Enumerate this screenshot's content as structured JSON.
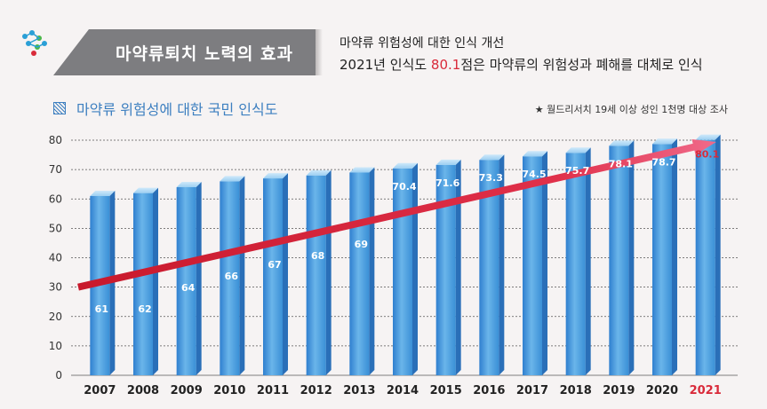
{
  "header": {
    "badge_title": "마약류퇴치 노력의 효과",
    "desc_line1": "마약류 위험성에 대한 인식 개선",
    "desc_line2_prefix": "2021년 인식도 ",
    "desc_line2_highlight": "80.1",
    "desc_line2_suffix": "점은 마약류의 위험성과 폐해를 대체로 인식"
  },
  "subtitle": "마약류 위험성에 대한 국민 인식도",
  "source": "★ 월드리서치  19세 이상 성인 1천명 대상 조사",
  "colors": {
    "accent_red": "#d92a3a",
    "bar_blue": "#3a8fd6",
    "banner_gray": "#7d7d80",
    "title_blue": "#3d7fc0"
  },
  "chart_data": {
    "type": "bar",
    "title": "마약류 위험성에 대한 국민 인식도",
    "xlabel": "",
    "ylabel": "",
    "ylim": [
      0,
      80
    ],
    "yticks": [
      0,
      10,
      20,
      30,
      40,
      50,
      60,
      70,
      80
    ],
    "grid": true,
    "categories": [
      "2007",
      "2008",
      "2009",
      "2010",
      "2011",
      "2012",
      "2013",
      "2014",
      "2015",
      "2016",
      "2017",
      "2018",
      "2019",
      "2020",
      "2021"
    ],
    "values": [
      61,
      62,
      64,
      66,
      67,
      68,
      69,
      70.4,
      71.6,
      73.3,
      74.5,
      75.7,
      78.1,
      78.7,
      80.1
    ],
    "bar_labels": [
      "61",
      "62",
      "64",
      "66",
      "67",
      "68",
      "69",
      "70.4",
      "71.6",
      "73.3",
      "74.5",
      "75.7",
      "78.1",
      "78.7",
      "80.1"
    ],
    "highlight_category": "2021",
    "annotations": [
      "upward trend arrow"
    ]
  }
}
